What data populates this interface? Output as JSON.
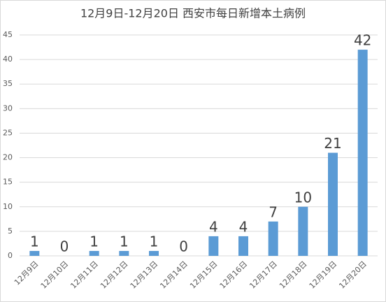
{
  "chart_data": {
    "type": "bar",
    "title": "12月9日-12月20日 西安市每日新增本土病例",
    "categories": [
      "12月9日",
      "12月10日",
      "12月11日",
      "12月12日",
      "12月13日",
      "12月14日",
      "12月15日",
      "12月16日",
      "12月17日",
      "12月18日",
      "12月19日",
      "12月20日"
    ],
    "values": [
      1,
      0,
      1,
      1,
      1,
      0,
      4,
      4,
      7,
      10,
      21,
      42
    ],
    "color": "#5b9bd5",
    "ylim": [
      0,
      45
    ],
    "yticks": [
      0,
      5,
      10,
      15,
      20,
      25,
      30,
      35,
      40,
      45
    ],
    "grid": true
  }
}
